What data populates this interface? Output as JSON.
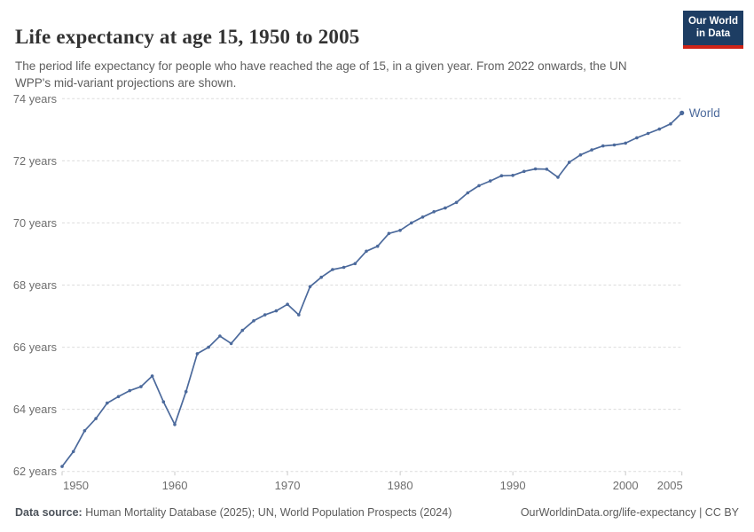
{
  "header": {
    "title": "Life expectancy at age 15, 1950 to 2005",
    "subtitle": "The period life expectancy for people who have reached the age of 15, in a given year. From 2022 onwards, the UN WPP's mid-variant projections are shown."
  },
  "logo": {
    "line1": "Our World",
    "line2": "in Data",
    "bg_color": "#1d3d63",
    "accent_color": "#cf2317"
  },
  "chart_data": {
    "type": "line",
    "title": "Life expectancy at age 15, 1950 to 2005",
    "xlabel": "",
    "ylabel": "",
    "xlim": [
      1950,
      2005
    ],
    "ylim": [
      62,
      74
    ],
    "x_ticks": [
      1950,
      1960,
      1970,
      1980,
      1990,
      2000,
      2005
    ],
    "y_ticks": [
      62,
      64,
      66,
      68,
      70,
      72,
      74
    ],
    "y_tick_suffix": " years",
    "grid": "horizontal-dashed",
    "legend_position": "end-of-line",
    "colors": {
      "series": "#4c6a9c",
      "grid": "#dcdcdc",
      "tick": "#c8c8c8",
      "axis_text": "#6e6e6e"
    },
    "years": [
      1950,
      1951,
      1952,
      1953,
      1954,
      1955,
      1956,
      1957,
      1958,
      1959,
      1960,
      1961,
      1962,
      1963,
      1964,
      1965,
      1966,
      1967,
      1968,
      1969,
      1970,
      1971,
      1972,
      1973,
      1974,
      1975,
      1976,
      1977,
      1978,
      1979,
      1980,
      1981,
      1982,
      1983,
      1984,
      1985,
      1986,
      1987,
      1988,
      1989,
      1990,
      1991,
      1992,
      1993,
      1994,
      1995,
      1996,
      1997,
      1998,
      1999,
      2000,
      2001,
      2002,
      2003,
      2004,
      2005
    ],
    "series": [
      {
        "name": "World",
        "values": [
          62.16,
          62.64,
          63.31,
          63.7,
          64.2,
          64.41,
          64.6,
          64.73,
          65.07,
          64.24,
          63.51,
          64.57,
          65.79,
          66.0,
          66.36,
          66.12,
          66.54,
          66.85,
          67.04,
          67.17,
          67.38,
          67.04,
          67.95,
          68.25,
          68.5,
          68.57,
          68.69,
          69.09,
          69.25,
          69.66,
          69.76,
          70.0,
          70.19,
          70.36,
          70.48,
          70.66,
          70.97,
          71.2,
          71.35,
          71.52,
          71.53,
          71.66,
          71.74,
          71.73,
          71.47,
          71.95,
          72.19,
          72.35,
          72.48,
          72.51,
          72.57,
          72.74,
          72.88,
          73.02,
          73.19,
          73.54
        ]
      }
    ]
  },
  "footer": {
    "source_label": "Data source:",
    "source_text": " Human Mortality Database (2025); UN, World Population Prospects (2024)",
    "attribution": "OurWorldinData.org/life-expectancy | CC BY"
  }
}
